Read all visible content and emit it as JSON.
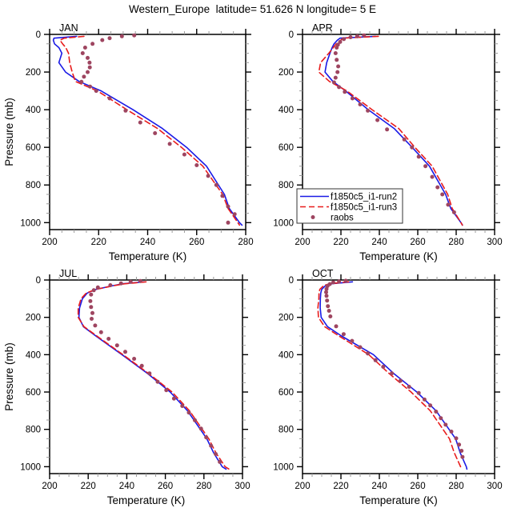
{
  "title": "Western_Europe  latitude= 51.626 N longitude= 5 E",
  "axis_titles": {
    "x": "Temperature (K)",
    "y": "Pressure (mb)"
  },
  "colors": {
    "run2": "#1a1ae6",
    "run3": "#e81c1c",
    "raobs": "#9e4560",
    "axis": "#000000",
    "minor_tick": "#999999"
  },
  "legend": {
    "entries": [
      {
        "label": "f1850c5_i1-run2",
        "marker": "solid-line",
        "series": "run2"
      },
      {
        "label": "f1850c5_i1-run3",
        "marker": "dashed-line",
        "series": "run3"
      },
      {
        "label": "raobs",
        "marker": "dot",
        "series": "raobs"
      }
    ]
  },
  "chart_data": [
    {
      "type": "line",
      "month": "JAN",
      "xlim": [
        200,
        280
      ],
      "xticks": [
        200,
        220,
        240,
        260,
        280
      ],
      "x_minor_step": 5,
      "ylim": [
        0,
        1037
      ],
      "yticks": [
        0,
        200,
        400,
        600,
        800,
        1000
      ],
      "y_minor_step": 50,
      "levels_mb": [
        10,
        20,
        30,
        50,
        70,
        100,
        150,
        200,
        250,
        300,
        400,
        500,
        600,
        700,
        850,
        925,
        1000,
        1013
      ],
      "series": [
        {
          "name": "f1850c5_i1-run2",
          "temps_k": [
            211,
            201.8,
            201.5,
            202,
            203.8,
            205,
            203.8,
            206.5,
            212,
            221,
            234,
            246,
            255.9,
            264,
            271.3,
            273.3,
            277.5,
            278.5
          ]
        },
        {
          "name": "f1850c5_i1-run3",
          "temps_k": [
            214,
            206,
            204.2,
            205.3,
            206.6,
            207.7,
            208.2,
            209.2,
            210.5,
            219.5,
            231.5,
            244,
            253.8,
            262.5,
            270.6,
            272.8,
            276.8,
            277.5
          ]
        }
      ],
      "raobs_t_p": [
        [
          234.5,
          5
        ],
        [
          229.5,
          10
        ],
        [
          224.5,
          20
        ],
        [
          221.5,
          30
        ],
        [
          217.5,
          50
        ],
        [
          214.5,
          70
        ],
        [
          213.5,
          100
        ],
        [
          215.5,
          125
        ],
        [
          216.3,
          150
        ],
        [
          216.4,
          175
        ],
        [
          215.5,
          200
        ],
        [
          214,
          225
        ],
        [
          213,
          252
        ],
        [
          216.5,
          277
        ],
        [
          219,
          300
        ],
        [
          224.5,
          340
        ],
        [
          231,
          405
        ],
        [
          237,
          468
        ],
        [
          243,
          525
        ],
        [
          249,
          582
        ],
        [
          255,
          638
        ],
        [
          260,
          695
        ],
        [
          264.7,
          752
        ],
        [
          268,
          800
        ],
        [
          270.5,
          858
        ],
        [
          272.8,
          914
        ],
        [
          275.5,
          955
        ],
        [
          272.8,
          1000
        ]
      ]
    },
    {
      "type": "line",
      "month": "APR",
      "xlim": [
        200,
        300
      ],
      "xticks": [
        200,
        220,
        240,
        260,
        280,
        300
      ],
      "x_minor_step": 5,
      "ylim": [
        0,
        1037
      ],
      "yticks": [
        0,
        200,
        400,
        600,
        800,
        1000
      ],
      "y_minor_step": 50,
      "levels_mb": [
        10,
        20,
        30,
        50,
        70,
        100,
        150,
        200,
        250,
        300,
        400,
        500,
        600,
        700,
        850,
        925,
        1000,
        1013
      ],
      "series": [
        {
          "name": "f1850c5_i1-run2",
          "temps_k": [
            238,
            219.5,
            218.2,
            216.4,
            215.4,
            214.3,
            212.6,
            211.7,
            215.8,
            222.4,
            234.2,
            247.7,
            257.1,
            266.1,
            274.5,
            277.2,
            282.5,
            283.3
          ]
        },
        {
          "name": "f1850c5_i1-run3",
          "temps_k": [
            239.5,
            221,
            220,
            217.5,
            216,
            213.7,
            209.4,
            208.5,
            214,
            223.1,
            236.2,
            250.1,
            258.5,
            267.5,
            275.6,
            277.9,
            282.5,
            283.2
          ]
        }
      ],
      "raobs_t_p": [
        [
          232,
          5
        ],
        [
          228.5,
          10
        ],
        [
          225,
          15
        ],
        [
          221.5,
          25
        ],
        [
          219.6,
          40
        ],
        [
          218.4,
          55
        ],
        [
          217.8,
          70
        ],
        [
          217.2,
          100
        ],
        [
          217.8,
          135
        ],
        [
          218.6,
          170
        ],
        [
          218.2,
          200
        ],
        [
          217.2,
          230
        ],
        [
          216.4,
          255
        ],
        [
          219,
          280
        ],
        [
          222,
          305
        ],
        [
          226,
          340
        ],
        [
          230,
          372
        ],
        [
          234,
          405
        ],
        [
          239,
          455
        ],
        [
          244,
          505
        ],
        [
          253,
          558
        ],
        [
          257,
          600
        ],
        [
          260.5,
          650
        ],
        [
          264,
          700
        ],
        [
          267.5,
          757
        ],
        [
          270.3,
          812
        ],
        [
          272.8,
          850
        ],
        [
          275.8,
          905
        ],
        [
          278.9,
          945
        ]
      ]
    },
    {
      "type": "line",
      "month": "JUL",
      "xlim": [
        200,
        300
      ],
      "xticks": [
        200,
        220,
        240,
        260,
        280,
        300
      ],
      "x_minor_step": 5,
      "ylim": [
        0,
        1037
      ],
      "yticks": [
        0,
        200,
        400,
        600,
        800,
        1000
      ],
      "y_minor_step": 50,
      "levels_mb": [
        10,
        20,
        30,
        50,
        70,
        100,
        150,
        200,
        250,
        300,
        400,
        500,
        600,
        700,
        850,
        925,
        1000,
        1013
      ],
      "series": [
        {
          "name": "f1850c5_i1-run2",
          "temps_k": [
            249,
            238,
            233,
            224,
            219.5,
            217,
            215.5,
            215.2,
            217.5,
            224,
            237.5,
            250.7,
            262.5,
            271.5,
            281.5,
            285,
            289.5,
            291.5
          ]
        },
        {
          "name": "f1850c5_i1-run3",
          "temps_k": [
            250,
            239,
            233.5,
            224,
            219,
            216.3,
            214.8,
            214.8,
            217.8,
            224.5,
            238,
            251.2,
            263.5,
            272.5,
            282.5,
            286.2,
            291,
            293
          ]
        }
      ],
      "raobs_t_p": [
        [
          247,
          5
        ],
        [
          242,
          10
        ],
        [
          237,
          18
        ],
        [
          231.5,
          28
        ],
        [
          225,
          40
        ],
        [
          222.9,
          55
        ],
        [
          221.5,
          78
        ],
        [
          221.1,
          113
        ],
        [
          221.5,
          145
        ],
        [
          222.2,
          177
        ],
        [
          221.8,
          208
        ],
        [
          223.6,
          244
        ],
        [
          226.7,
          280
        ],
        [
          230.6,
          315
        ],
        [
          235,
          350
        ],
        [
          239.2,
          385
        ],
        [
          243.8,
          422
        ],
        [
          247.8,
          460
        ],
        [
          251.8,
          500
        ],
        [
          256,
          545
        ],
        [
          260.5,
          590
        ],
        [
          264.5,
          635
        ],
        [
          268.8,
          675
        ],
        [
          272.2,
          710
        ],
        [
          275.3,
          751
        ],
        [
          278.5,
          796
        ],
        [
          281.2,
          843
        ],
        [
          283.7,
          888
        ],
        [
          286.1,
          932
        ],
        [
          288.2,
          974
        ]
      ]
    },
    {
      "type": "line",
      "month": "OCT",
      "xlim": [
        200,
        300
      ],
      "xticks": [
        200,
        220,
        240,
        260,
        280,
        300
      ],
      "x_minor_step": 5,
      "ylim": [
        0,
        1037
      ],
      "yticks": [
        0,
        200,
        400,
        600,
        800,
        1000
      ],
      "y_minor_step": 50,
      "levels_mb": [
        10,
        20,
        30,
        50,
        70,
        100,
        150,
        200,
        250,
        300,
        400,
        500,
        600,
        700,
        850,
        925,
        1000,
        1013
      ],
      "series": [
        {
          "name": "f1850c5_i1-run2",
          "temps_k": [
            226,
            215,
            212,
            210,
            209.5,
            209.3,
            209.2,
            209.7,
            213,
            220.3,
            236.9,
            247.4,
            259.5,
            269.5,
            279.7,
            282.1,
            285.3,
            285.6
          ]
        },
        {
          "name": "f1850c5_i1-run3",
          "temps_k": [
            224,
            214,
            211,
            209,
            208.6,
            208.5,
            208,
            208.3,
            211.5,
            219,
            234.5,
            245,
            256.5,
            266.5,
            276.5,
            279,
            282.3,
            282.5
          ]
        }
      ],
      "raobs_t_p": [
        [
          222.5,
          4
        ],
        [
          219,
          8
        ],
        [
          216,
          13
        ],
        [
          214.2,
          22
        ],
        [
          213,
          32
        ],
        [
          212.5,
          48
        ],
        [
          212.3,
          65
        ],
        [
          212.5,
          85
        ],
        [
          212.8,
          110
        ],
        [
          213.2,
          140
        ],
        [
          213.8,
          165
        ],
        [
          214.5,
          195
        ],
        [
          217.5,
          248
        ],
        [
          221.4,
          290
        ],
        [
          225.8,
          326
        ],
        [
          230,
          360
        ],
        [
          234,
          394
        ],
        [
          238,
          430
        ],
        [
          242,
          465
        ],
        [
          246.5,
          500
        ],
        [
          251,
          540
        ],
        [
          255.5,
          572
        ],
        [
          260.5,
          605
        ],
        [
          263.5,
          640
        ],
        [
          266.5,
          672
        ],
        [
          269.5,
          705
        ],
        [
          272,
          740
        ],
        [
          274.5,
          775
        ],
        [
          277.5,
          812
        ],
        [
          280,
          848
        ],
        [
          281.5,
          882
        ],
        [
          282.8,
          915
        ],
        [
          283.3,
          948
        ]
      ]
    }
  ]
}
